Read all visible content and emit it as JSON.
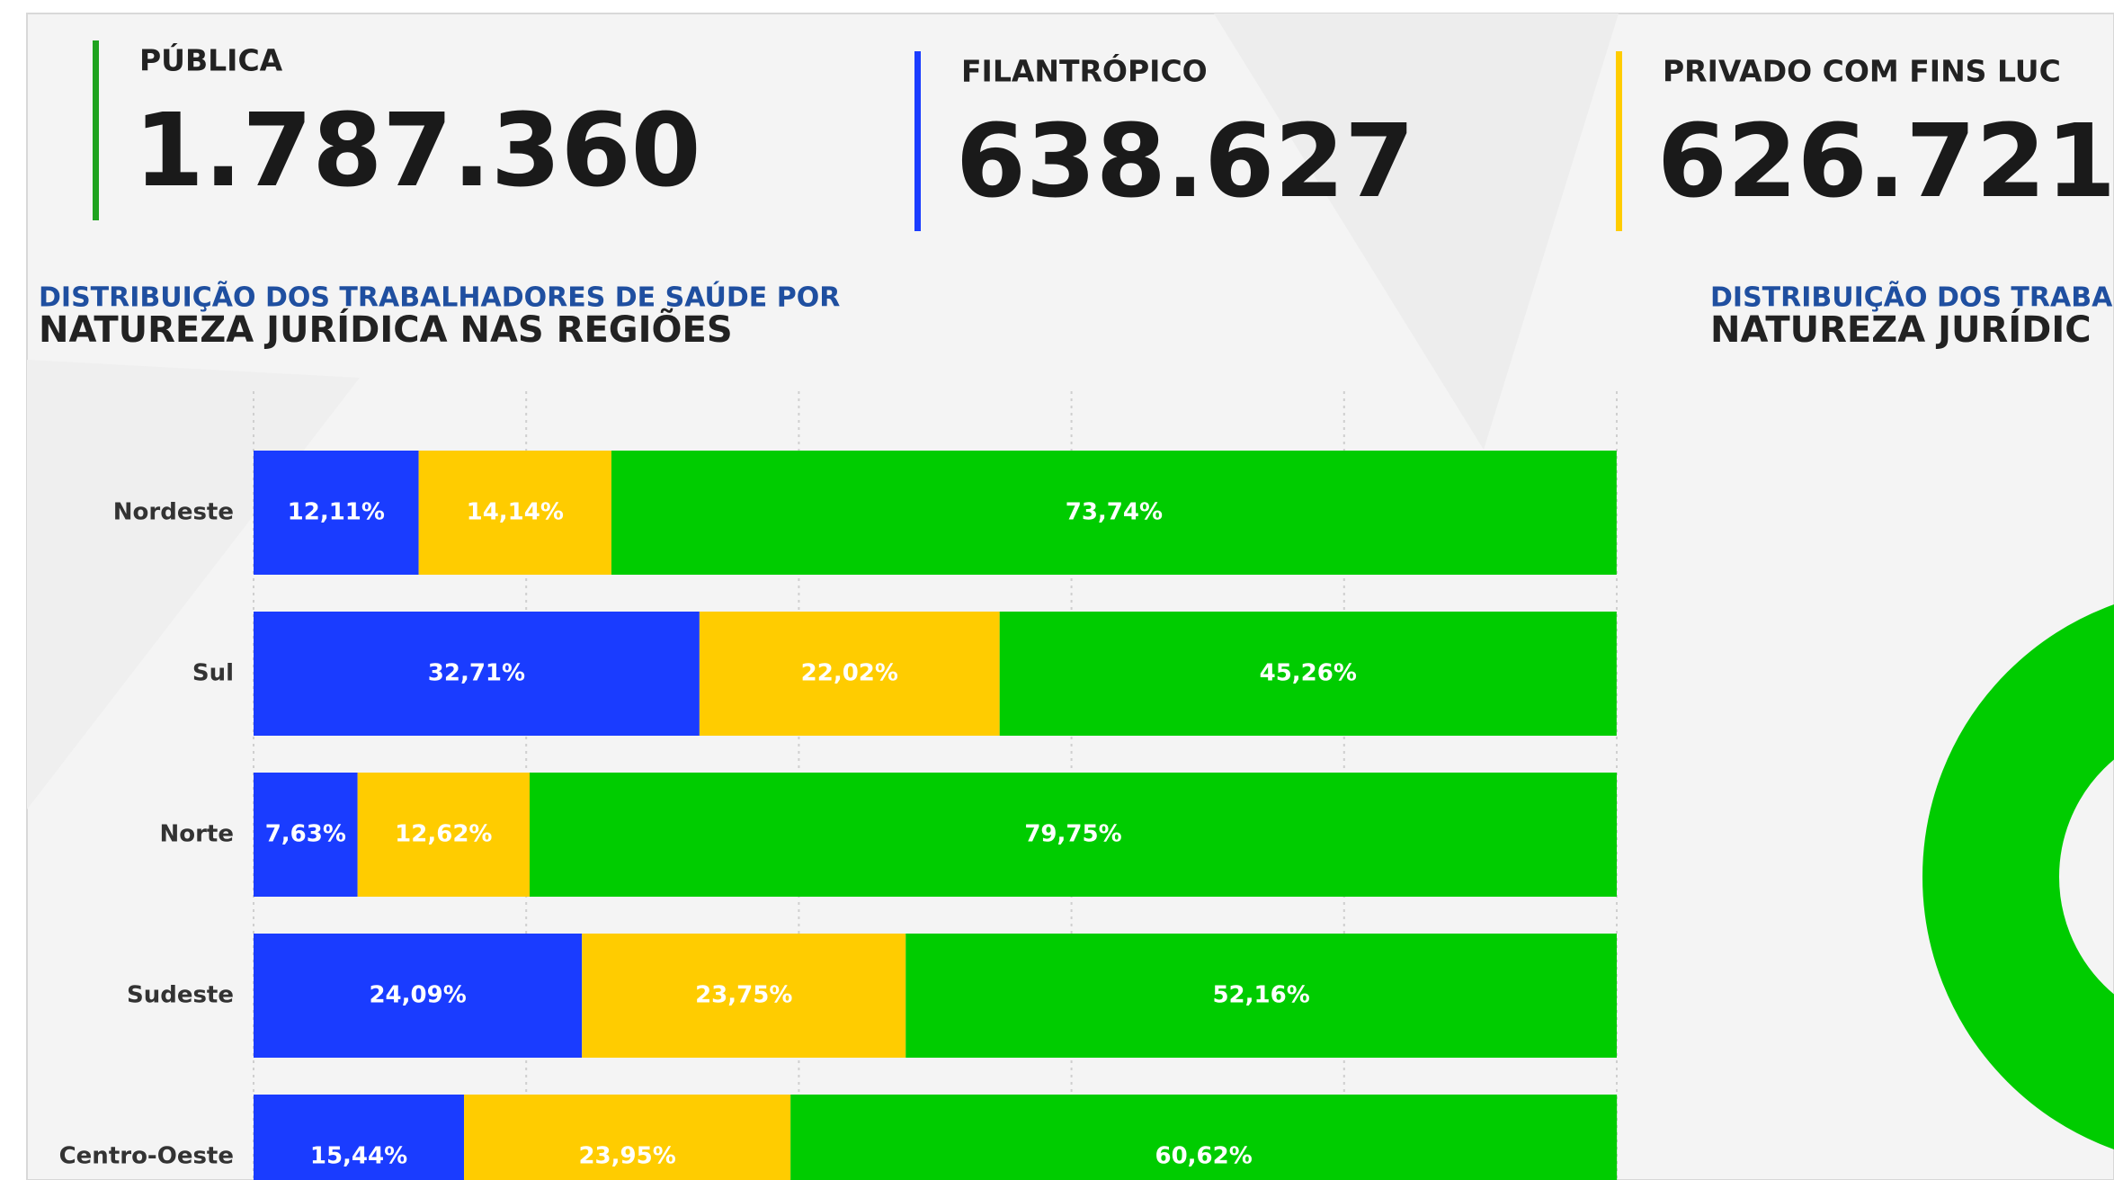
{
  "kpis": [
    {
      "label": "PÚBLICA",
      "value": "1.787.360",
      "color": "#1fa31f"
    },
    {
      "label": "FILANTRÓPICO",
      "value": "638.627",
      "color": "#1a3cff"
    },
    {
      "label": "PRIVADO COM FINS LUC",
      "value": "626.721",
      "color": "#ffcc00"
    }
  ],
  "side_panel": {
    "subtitle": "DISTRIBUIÇÃO DOS TRABA",
    "title": "NATUREZA JURÍDIC"
  },
  "chart_data": {
    "type": "stacked_bar_horizontal",
    "subtitle": "DISTRIBUIÇÃO DOS TRABALHADORES DE SAÚDE POR",
    "title": "NATUREZA JURÍDICA NAS REGIÕES",
    "categories": [
      "Nordeste",
      "Sul",
      "Norte",
      "Sudeste",
      "Centro-Oeste"
    ],
    "series": [
      {
        "color": "#1a3cff",
        "values": [
          12.11,
          32.71,
          7.63,
          24.09,
          15.44
        ],
        "value_labels": [
          "12,11%",
          "32,71%",
          "7,63%",
          "24,09%",
          "15,44%"
        ]
      },
      {
        "color": "#ffcc00",
        "values": [
          14.14,
          22.02,
          12.62,
          23.75,
          23.95
        ],
        "value_labels": [
          "14,14%",
          "22,02%",
          "12,62%",
          "23,75%",
          "23,95%"
        ]
      },
      {
        "color": "#00cc00",
        "values": [
          73.74,
          45.26,
          79.75,
          52.16,
          60.62
        ],
        "value_labels": [
          "73,74%",
          "45,26%",
          "79,75%",
          "52,16%",
          "60,62%"
        ]
      }
    ],
    "xlim": [
      0,
      100
    ],
    "xticks": [
      0,
      20,
      40,
      60,
      80,
      100
    ],
    "grid": true
  }
}
